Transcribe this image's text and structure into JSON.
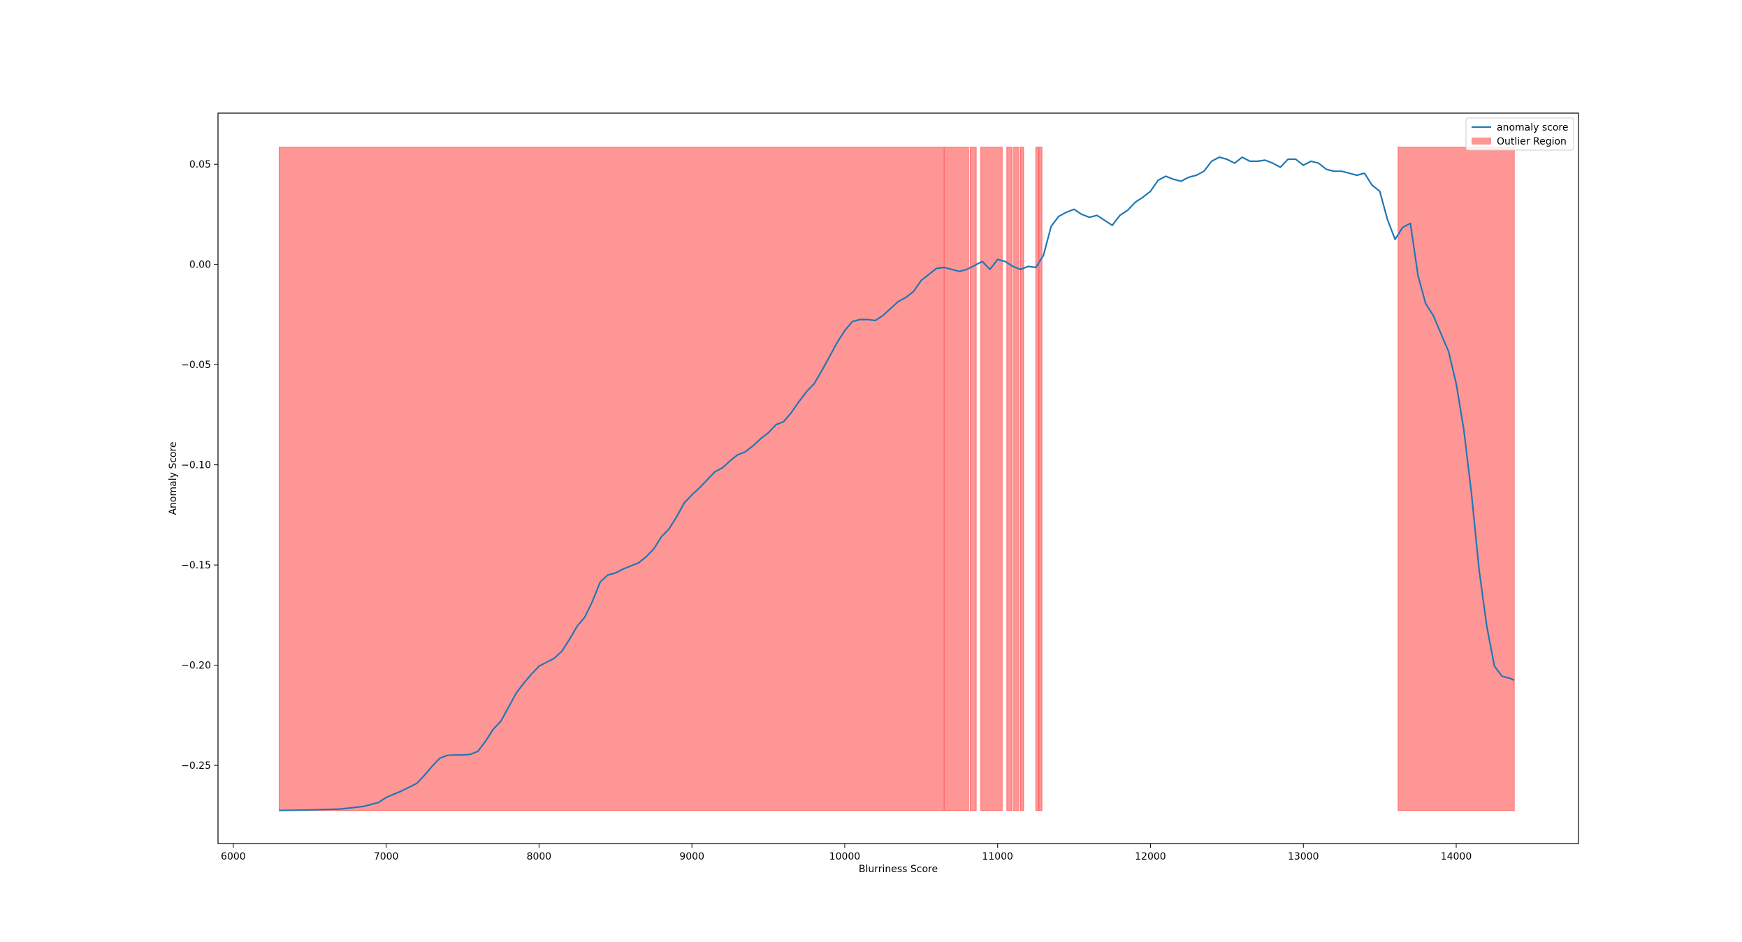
{
  "chart_data": {
    "type": "line",
    "title": "",
    "xlabel": "Blurriness Score",
    "ylabel": "Anomaly Score",
    "xlim": [
      5900,
      14800
    ],
    "ylim": [
      -0.289,
      0.0755
    ],
    "xticks": [
      6000,
      7000,
      8000,
      9000,
      10000,
      11000,
      12000,
      13000,
      14000
    ],
    "xtick_labels": [
      "6000",
      "7000",
      "8000",
      "9000",
      "10000",
      "11000",
      "12000",
      "13000",
      "14000"
    ],
    "yticks": [
      0.05,
      0.0,
      -0.05,
      -0.1,
      -0.15,
      -0.2,
      -0.25
    ],
    "ytick_labels": [
      "0.05",
      "0.00",
      "−0.05",
      "−0.10",
      "−0.15",
      "−0.20",
      "−0.25"
    ],
    "grid": false,
    "legend_position": "upper right",
    "series": [
      {
        "name": "anomaly score",
        "color": "#1f77b4",
        "x": [
          6300,
          6500,
          6700,
          6850,
          6950,
          7000,
          7100,
          7200,
          7250,
          7300,
          7350,
          7400,
          7450,
          7500,
          7550,
          7600,
          7650,
          7700,
          7750,
          7800,
          7850,
          7900,
          7950,
          8000,
          8050,
          8100,
          8150,
          8200,
          8250,
          8300,
          8350,
          8400,
          8450,
          8500,
          8550,
          8600,
          8650,
          8700,
          8750,
          8800,
          8850,
          8900,
          8950,
          9000,
          9050,
          9100,
          9150,
          9200,
          9250,
          9300,
          9350,
          9400,
          9450,
          9500,
          9550,
          9600,
          9650,
          9700,
          9750,
          9800,
          9850,
          9900,
          9950,
          10000,
          10050,
          10100,
          10150,
          10200,
          10250,
          10300,
          10350,
          10400,
          10450,
          10500,
          10550,
          10600,
          10650,
          10700,
          10750,
          10800,
          10850,
          10900,
          10950,
          11000,
          11050,
          11100,
          11150,
          11200,
          11250,
          11300,
          11350,
          11400,
          11450,
          11500,
          11550,
          11600,
          11650,
          11700,
          11750,
          11800,
          11850,
          11900,
          11950,
          12000,
          12050,
          12100,
          12150,
          12200,
          12250,
          12300,
          12350,
          12400,
          12450,
          12500,
          12550,
          12600,
          12650,
          12700,
          12750,
          12800,
          12850,
          12900,
          12950,
          13000,
          13050,
          13100,
          13150,
          13200,
          13250,
          13300,
          13350,
          13400,
          13450,
          13500,
          13550,
          13600,
          13650,
          13700,
          13750,
          13800,
          13850,
          13900,
          13950,
          14000,
          14050,
          14100,
          14150,
          14200,
          14250,
          14300,
          14350,
          14380
        ],
        "y": [
          -0.2725,
          -0.2722,
          -0.2718,
          -0.2705,
          -0.2685,
          -0.266,
          -0.2628,
          -0.259,
          -0.255,
          -0.2505,
          -0.2465,
          -0.245,
          -0.2448,
          -0.2448,
          -0.2445,
          -0.243,
          -0.238,
          -0.232,
          -0.228,
          -0.221,
          -0.214,
          -0.209,
          -0.2045,
          -0.2005,
          -0.1985,
          -0.1965,
          -0.193,
          -0.187,
          -0.1805,
          -0.176,
          -0.168,
          -0.1585,
          -0.155,
          -0.154,
          -0.152,
          -0.1505,
          -0.149,
          -0.146,
          -0.142,
          -0.136,
          -0.132,
          -0.126,
          -0.119,
          -0.115,
          -0.1115,
          -0.1075,
          -0.1035,
          -0.1015,
          -0.098,
          -0.095,
          -0.0935,
          -0.0905,
          -0.087,
          -0.084,
          -0.08,
          -0.0785,
          -0.074,
          -0.0685,
          -0.0635,
          -0.0595,
          -0.053,
          -0.046,
          -0.039,
          -0.033,
          -0.0285,
          -0.0275,
          -0.0275,
          -0.028,
          -0.0255,
          -0.022,
          -0.0185,
          -0.0165,
          -0.0135,
          -0.008,
          -0.005,
          -0.002,
          -0.0015,
          -0.0025,
          -0.0035,
          -0.0025,
          -0.0005,
          0.0015,
          -0.0025,
          0.0025,
          0.0015,
          -0.001,
          -0.0025,
          -0.001,
          -0.0015,
          0.0045,
          0.019,
          0.024,
          0.026,
          0.0275,
          0.025,
          0.0235,
          0.0245,
          0.022,
          0.0195,
          0.0245,
          0.027,
          0.031,
          0.0335,
          0.0365,
          0.042,
          0.044,
          0.0425,
          0.0415,
          0.0435,
          0.0445,
          0.0465,
          0.0515,
          0.0535,
          0.0525,
          0.0505,
          0.0535,
          0.0515,
          0.0515,
          0.052,
          0.0505,
          0.0485,
          0.0525,
          0.0525,
          0.0495,
          0.0515,
          0.0505,
          0.0475,
          0.0465,
          0.0465,
          0.0455,
          0.0445,
          0.0455,
          0.0395,
          0.0365,
          0.0225,
          0.0125,
          0.0185,
          0.0205,
          -0.0055,
          -0.0195,
          -0.0255,
          -0.0345,
          -0.0435,
          -0.0595,
          -0.0825,
          -0.1145,
          -0.1525,
          -0.1805,
          -0.2005,
          -0.2055,
          -0.2065,
          -0.2075
        ]
      }
    ],
    "outlier_regions": {
      "name": "Outlier Region",
      "color": "#ff4040",
      "alpha": 0.55,
      "y_range": [
        -0.2725,
        0.0585
      ],
      "spans": [
        [
          6300,
          10650
        ],
        [
          10650,
          10810
        ],
        [
          10820,
          10860
        ],
        [
          10890,
          11030
        ],
        [
          11060,
          11090
        ],
        [
          11100,
          11140
        ],
        [
          11150,
          11170
        ],
        [
          11250,
          11270
        ],
        [
          11270,
          11290
        ],
        [
          13620,
          14380
        ]
      ]
    },
    "legend": [
      {
        "label": "anomaly score",
        "kind": "line",
        "color": "#1f77b4"
      },
      {
        "label": "Outlier Region",
        "kind": "patch",
        "color": "#ff4040"
      }
    ]
  }
}
